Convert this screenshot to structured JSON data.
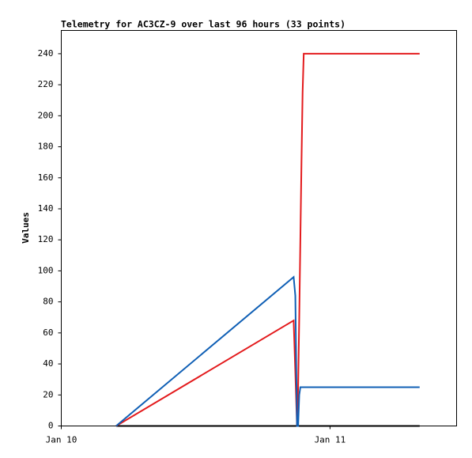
{
  "chart_data": {
    "type": "line",
    "title": "Telemetry for AC3CZ-9 over last 96 hours (33 points)",
    "y_label": "Values",
    "x": [
      4.9,
      20.75,
      20.9,
      21.05,
      21.15,
      21.25,
      21.35,
      21.45,
      21.55,
      21.65,
      32.0
    ],
    "series": [
      {
        "color": "#000000",
        "values": [
          0,
          0,
          0,
          0,
          0,
          0,
          0,
          0,
          0,
          0,
          0
        ]
      },
      {
        "color": "#e31a1c",
        "values": [
          0,
          68,
          35,
          0,
          25,
          70,
          120,
          170,
          215,
          240,
          240
        ]
      },
      {
        "color": "#0f5fb5",
        "values": [
          0,
          96,
          84,
          0,
          0,
          20,
          25,
          25,
          25,
          25,
          25
        ]
      }
    ],
    "xlim": [
      0,
      35.3
    ],
    "xticks": [
      {
        "value": 0,
        "label": "Jan 10"
      },
      {
        "value": 24,
        "label": "Jan 11"
      }
    ],
    "ylim": [
      0,
      255
    ],
    "yticks": [
      0,
      20,
      40,
      60,
      80,
      100,
      120,
      140,
      160,
      180,
      200,
      220,
      240
    ]
  }
}
